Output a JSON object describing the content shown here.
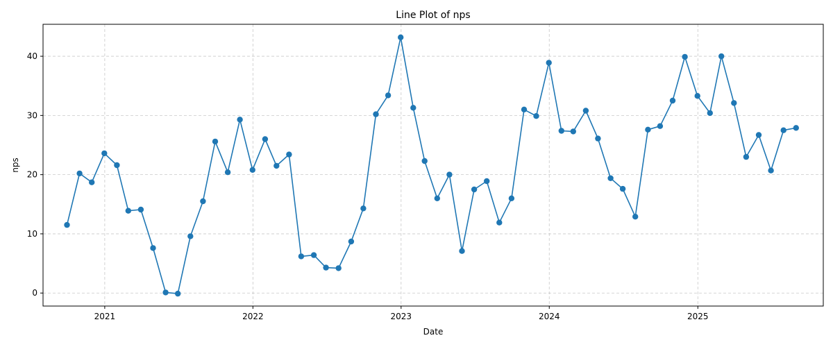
{
  "chart_data": {
    "type": "line",
    "title": "Line Plot of nps",
    "xlabel": "Date",
    "ylabel": "nps",
    "ylim": [
      -2.2,
      45.4
    ],
    "xlim": [
      "2020-08-02",
      "2025-11-06"
    ],
    "grid": true,
    "line_color": "#1f77b4",
    "x_ticks": [
      {
        "date": "2021-01-01",
        "label": "2021"
      },
      {
        "date": "2022-01-01",
        "label": "2022"
      },
      {
        "date": "2023-01-01",
        "label": "2023"
      },
      {
        "date": "2024-01-01",
        "label": "2024"
      },
      {
        "date": "2025-01-01",
        "label": "2025"
      }
    ],
    "y_ticks": [
      0,
      10,
      20,
      30,
      40
    ],
    "series": [
      {
        "x": [
          "2020-09-30",
          "2020-10-31",
          "2020-11-30",
          "2020-12-31",
          "2021-01-31",
          "2021-02-28",
          "2021-03-31",
          "2021-04-30",
          "2021-05-31",
          "2021-06-30",
          "2021-07-31",
          "2021-08-31",
          "2021-09-30",
          "2021-10-31",
          "2021-11-30",
          "2021-12-31",
          "2022-01-31",
          "2022-02-28",
          "2022-03-31",
          "2022-04-30",
          "2022-05-31",
          "2022-06-30",
          "2022-07-31",
          "2022-08-31",
          "2022-09-30",
          "2022-10-31",
          "2022-11-30",
          "2022-12-31",
          "2023-01-31",
          "2023-02-28",
          "2023-03-31",
          "2023-04-30",
          "2023-05-31",
          "2023-06-30",
          "2023-07-31",
          "2023-08-31",
          "2023-09-30",
          "2023-10-31",
          "2023-11-30",
          "2023-12-31",
          "2024-01-31",
          "2024-02-29",
          "2024-03-31",
          "2024-04-30",
          "2024-05-31",
          "2024-06-30",
          "2024-07-31",
          "2024-08-31",
          "2024-09-30",
          "2024-10-31",
          "2024-11-30",
          "2024-12-31",
          "2025-01-31",
          "2025-02-28",
          "2025-03-31",
          "2025-04-30",
          "2025-05-31",
          "2025-06-30",
          "2025-07-31",
          "2025-08-31"
        ],
        "values": [
          11.5,
          20.2,
          18.7,
          23.6,
          21.6,
          13.9,
          14.1,
          7.6,
          0.1,
          -0.1,
          9.6,
          15.5,
          25.6,
          20.4,
          29.3,
          20.8,
          26.0,
          21.5,
          23.4,
          6.2,
          6.4,
          4.3,
          4.2,
          8.7,
          14.3,
          30.2,
          33.4,
          43.2,
          31.3,
          22.3,
          16.0,
          20.0,
          7.1,
          17.5,
          18.9,
          11.9,
          16.0,
          31.0,
          29.9,
          38.9,
          27.4,
          27.3,
          30.8,
          26.1,
          19.4,
          17.6,
          12.9,
          27.6,
          28.2,
          32.5,
          39.9,
          33.3,
          30.4,
          40.0,
          32.1,
          23.0,
          26.7,
          20.7,
          27.5,
          27.9
        ]
      }
    ]
  }
}
